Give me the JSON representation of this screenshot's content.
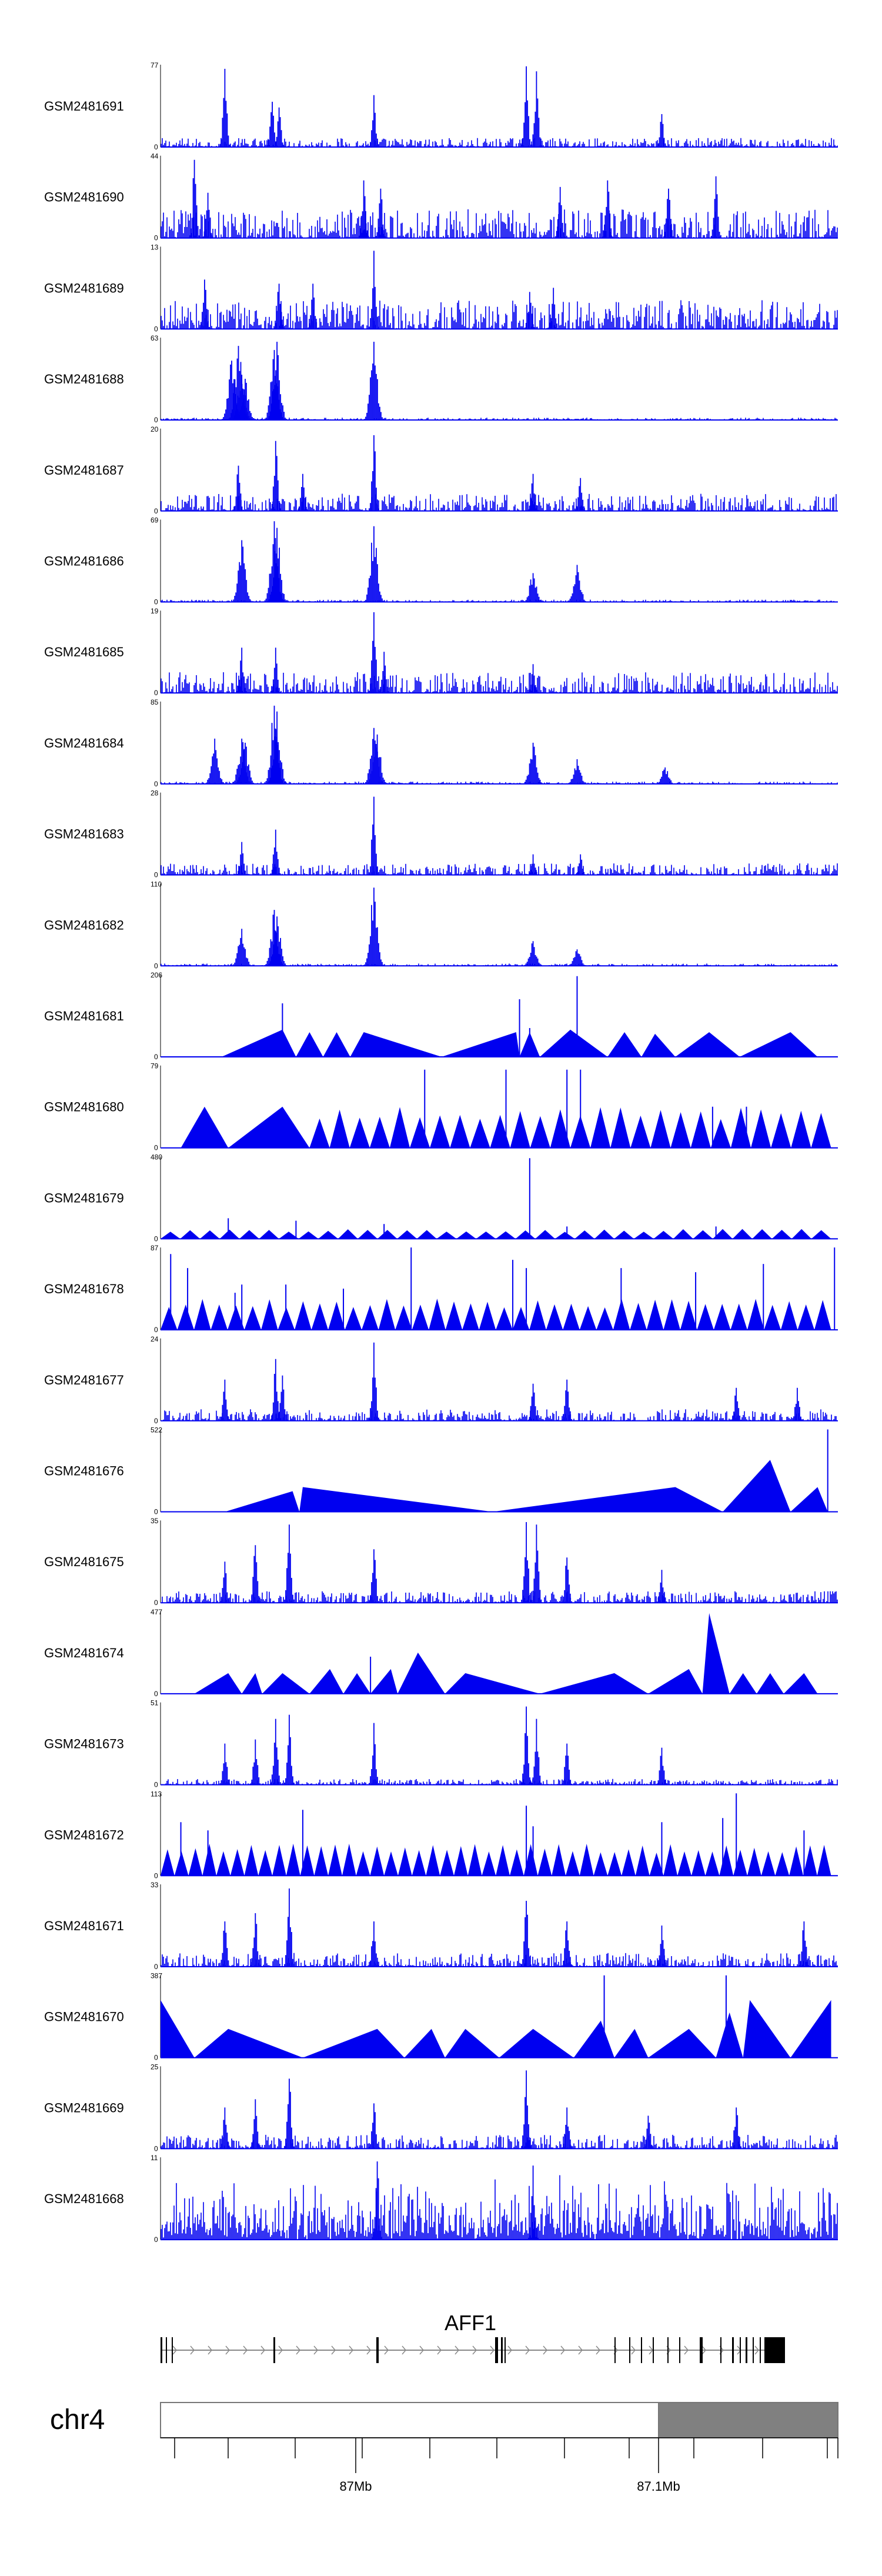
{
  "colors": {
    "signal": "#0000f0",
    "axis": "#000000",
    "exon": "#000000",
    "intron": "#888888",
    "ideogram_light": "#ffffff",
    "ideogram_dark": "#808080",
    "ideogram_border": "#777777"
  },
  "chart_data": {
    "type": "area",
    "title": "",
    "xlabel": "",
    "ylabel": "",
    "chromosome": "chr4",
    "gene": "AFF1",
    "x_ticks": [
      "87Mb",
      "87.1Mb"
    ],
    "tracks": [
      {
        "name": "GSM2481691",
        "ymin": "0",
        "ymax": "77",
        "peaks": [
          0.095,
          0.165,
          0.175,
          0.315,
          0.54,
          0.555,
          0.74
        ],
        "peak_heights": [
          0.95,
          0.55,
          0.48,
          0.63,
          0.98,
          0.92,
          0.4
        ],
        "style": "dense",
        "baseline": 0.08
      },
      {
        "name": "GSM2481690",
        "ymin": "0",
        "ymax": "44",
        "peaks": [
          0.05,
          0.07,
          0.3,
          0.325,
          0.59,
          0.66,
          0.75,
          0.82
        ],
        "peak_heights": [
          0.95,
          0.55,
          0.7,
          0.6,
          0.62,
          0.7,
          0.6,
          0.75
        ],
        "style": "dense",
        "baseline": 0.25
      },
      {
        "name": "GSM2481689",
        "ymin": "0",
        "ymax": "13",
        "peaks": [
          0.065,
          0.175,
          0.225,
          0.315,
          0.545,
          0.58
        ],
        "peak_heights": [
          0.6,
          0.55,
          0.55,
          0.95,
          0.45,
          0.5
        ],
        "style": "dense",
        "baseline": 0.25
      },
      {
        "name": "GSM2481688",
        "ymin": "0",
        "ymax": "63",
        "peaks": [
          0.105,
          0.115,
          0.12,
          0.125,
          0.168,
          0.172,
          0.315
        ],
        "peak_heights": [
          0.72,
          0.9,
          0.55,
          0.5,
          0.85,
          0.95,
          0.95
        ],
        "style": "peaky",
        "baseline": 0.02
      },
      {
        "name": "GSM2481687",
        "ymin": "0",
        "ymax": "20",
        "peaks": [
          0.115,
          0.17,
          0.21,
          0.315,
          0.55,
          0.62
        ],
        "peak_heights": [
          0.55,
          0.85,
          0.45,
          0.92,
          0.45,
          0.4
        ],
        "style": "dense",
        "baseline": 0.15
      },
      {
        "name": "GSM2481686",
        "ymin": "0",
        "ymax": "69",
        "peaks": [
          0.12,
          0.168,
          0.172,
          0.315,
          0.55,
          0.615
        ],
        "peak_heights": [
          0.75,
          0.98,
          0.9,
          0.92,
          0.35,
          0.45
        ],
        "style": "peaky",
        "baseline": 0.02
      },
      {
        "name": "GSM2481685",
        "ymin": "0",
        "ymax": "19",
        "peaks": [
          0.12,
          0.17,
          0.315,
          0.33,
          0.55
        ],
        "peak_heights": [
          0.55,
          0.55,
          0.98,
          0.5,
          0.35
        ],
        "style": "dense",
        "baseline": 0.18
      },
      {
        "name": "GSM2481684",
        "ymin": "0",
        "ymax": "85",
        "peaks": [
          0.08,
          0.12,
          0.125,
          0.168,
          0.172,
          0.315,
          0.32,
          0.55,
          0.615,
          0.745
        ],
        "peak_heights": [
          0.55,
          0.55,
          0.5,
          0.95,
          0.88,
          0.68,
          0.6,
          0.5,
          0.3,
          0.2
        ],
        "style": "peaky",
        "baseline": 0.02
      },
      {
        "name": "GSM2481683",
        "ymin": "0",
        "ymax": "28",
        "peaks": [
          0.12,
          0.17,
          0.315,
          0.55,
          0.62
        ],
        "peak_heights": [
          0.4,
          0.55,
          0.95,
          0.25,
          0.25
        ],
        "style": "dense",
        "baseline": 0.1
      },
      {
        "name": "GSM2481682",
        "ymin": "0",
        "ymax": "110",
        "peaks": [
          0.12,
          0.168,
          0.172,
          0.315,
          0.55,
          0.615
        ],
        "peak_heights": [
          0.45,
          0.68,
          0.6,
          0.95,
          0.3,
          0.2
        ],
        "style": "peaky",
        "baseline": 0.02
      },
      {
        "name": "GSM2481681",
        "ymin": "0",
        "ymax": "206",
        "points": [
          [
            0.09,
            0
          ],
          [
            0.18,
            0.33
          ],
          [
            0.2,
            0
          ],
          [
            0.22,
            0.3
          ],
          [
            0.24,
            0
          ],
          [
            0.26,
            0.3
          ],
          [
            0.28,
            0
          ],
          [
            0.3,
            0.3
          ],
          [
            0.415,
            0
          ],
          [
            0.525,
            0.3
          ],
          [
            0.53,
            0
          ],
          [
            0.545,
            0.3
          ],
          [
            0.56,
            0
          ],
          [
            0.605,
            0.33
          ],
          [
            0.66,
            0
          ],
          [
            0.685,
            0.3
          ],
          [
            0.71,
            0
          ],
          [
            0.73,
            0.28
          ],
          [
            0.76,
            0
          ],
          [
            0.81,
            0.3
          ],
          [
            0.855,
            0
          ],
          [
            0.93,
            0.3
          ],
          [
            0.97,
            0
          ]
        ],
        "spikes": [
          [
            0.18,
            0.65
          ],
          [
            0.53,
            0.7
          ],
          [
            0.545,
            0.35
          ],
          [
            0.615,
            0.98
          ]
        ],
        "style": "triangles"
      },
      {
        "name": "GSM2481680",
        "ymin": "0",
        "ymax": "79",
        "points": [
          [
            0.03,
            0
          ],
          [
            0.065,
            0.5
          ],
          [
            0.1,
            0
          ],
          [
            0.18,
            0.5
          ],
          [
            0.22,
            0
          ]
        ],
        "sawtooth": {
          "start": 0.22,
          "end": 0.99,
          "count": 26,
          "height": 0.5
        },
        "spikes": [
          [
            0.39,
            0.95
          ],
          [
            0.51,
            0.95
          ],
          [
            0.6,
            0.95
          ],
          [
            0.62,
            0.95
          ],
          [
            0.815,
            0.5
          ],
          [
            0.865,
            0.5
          ]
        ],
        "style": "triangles"
      },
      {
        "name": "GSM2481679",
        "ymin": "0",
        "ymax": "480",
        "sawtooth": {
          "start": 0.0,
          "end": 0.99,
          "count": 34,
          "height": 0.12
        },
        "spikes": [
          [
            0.1,
            0.25
          ],
          [
            0.2,
            0.22
          ],
          [
            0.33,
            0.18
          ],
          [
            0.545,
            0.98
          ],
          [
            0.6,
            0.15
          ],
          [
            0.82,
            0.15
          ]
        ],
        "style": "triangles"
      },
      {
        "name": "GSM2481678",
        "ymin": "0",
        "ymax": "87",
        "sawtooth": {
          "start": 0.0,
          "end": 0.99,
          "count": 40,
          "height": 0.38
        },
        "spikes": [
          [
            0.015,
            0.92
          ],
          [
            0.04,
            0.75
          ],
          [
            0.11,
            0.45
          ],
          [
            0.12,
            0.55
          ],
          [
            0.185,
            0.55
          ],
          [
            0.27,
            0.5
          ],
          [
            0.37,
            1.0
          ],
          [
            0.52,
            0.85
          ],
          [
            0.54,
            0.75
          ],
          [
            0.68,
            0.75
          ],
          [
            0.79,
            0.7
          ],
          [
            0.89,
            0.8
          ],
          [
            0.995,
            1.0
          ]
        ],
        "style": "triangles"
      },
      {
        "name": "GSM2481677",
        "ymin": "0",
        "ymax": "24",
        "peaks": [
          0.095,
          0.17,
          0.18,
          0.315,
          0.55,
          0.6,
          0.85,
          0.94
        ],
        "peak_heights": [
          0.5,
          0.75,
          0.55,
          0.95,
          0.45,
          0.5,
          0.4,
          0.4
        ],
        "style": "dense",
        "baseline": 0.1
      },
      {
        "name": "GSM2481676",
        "ymin": "0",
        "ymax": "522",
        "points": [
          [
            0.095,
            0
          ],
          [
            0.195,
            0.25
          ],
          [
            0.205,
            0
          ],
          [
            0.21,
            0.3
          ],
          [
            0.49,
            0
          ],
          [
            0.76,
            0.3
          ],
          [
            0.83,
            0
          ],
          [
            0.9,
            0.63
          ],
          [
            0.93,
            0
          ],
          [
            0.97,
            0.3
          ],
          [
            0.985,
            0
          ]
        ],
        "spikes": [
          [
            0.985,
            1.0
          ]
        ],
        "style": "triangles"
      },
      {
        "name": "GSM2481675",
        "ymin": "0",
        "ymax": "35",
        "peaks": [
          0.095,
          0.14,
          0.19,
          0.315,
          0.54,
          0.555,
          0.6,
          0.74
        ],
        "peak_heights": [
          0.5,
          0.7,
          0.95,
          0.65,
          0.98,
          0.95,
          0.55,
          0.4
        ],
        "style": "dense",
        "baseline": 0.1
      },
      {
        "name": "GSM2481674",
        "ymin": "0",
        "ymax": "477",
        "points": [
          [
            0.05,
            0
          ],
          [
            0.1,
            0.25
          ],
          [
            0.12,
            0
          ],
          [
            0.14,
            0.25
          ],
          [
            0.15,
            0
          ],
          [
            0.18,
            0.25
          ],
          [
            0.22,
            0
          ],
          [
            0.25,
            0.3
          ],
          [
            0.27,
            0
          ],
          [
            0.29,
            0.25
          ],
          [
            0.31,
            0
          ],
          [
            0.34,
            0.3
          ],
          [
            0.35,
            0
          ],
          [
            0.38,
            0.5
          ],
          [
            0.42,
            0
          ],
          [
            0.45,
            0.25
          ],
          [
            0.56,
            0
          ],
          [
            0.67,
            0.25
          ],
          [
            0.72,
            0
          ],
          [
            0.78,
            0.3
          ],
          [
            0.8,
            0
          ],
          [
            0.81,
            0.98
          ],
          [
            0.84,
            0
          ],
          [
            0.86,
            0.25
          ],
          [
            0.88,
            0
          ],
          [
            0.9,
            0.25
          ],
          [
            0.92,
            0
          ],
          [
            0.95,
            0.25
          ],
          [
            0.97,
            0
          ]
        ],
        "spikes": [
          [
            0.31,
            0.45
          ]
        ],
        "style": "triangles"
      },
      {
        "name": "GSM2481673",
        "ymin": "0",
        "ymax": "51",
        "peaks": [
          0.095,
          0.14,
          0.17,
          0.19,
          0.315,
          0.54,
          0.555,
          0.6,
          0.74
        ],
        "peak_heights": [
          0.5,
          0.55,
          0.8,
          0.85,
          0.75,
          0.95,
          0.8,
          0.5,
          0.45
        ],
        "style": "dense",
        "baseline": 0.05
      },
      {
        "name": "GSM2481672",
        "ymin": "0",
        "ymax": "113",
        "sawtooth": {
          "start": 0.0,
          "end": 0.99,
          "count": 48,
          "height": 0.4
        },
        "spikes": [
          [
            0.03,
            0.65
          ],
          [
            0.07,
            0.55
          ],
          [
            0.21,
            0.8
          ],
          [
            0.54,
            0.85
          ],
          [
            0.55,
            0.6
          ],
          [
            0.74,
            0.65
          ],
          [
            0.83,
            0.7
          ],
          [
            0.85,
            1.0
          ],
          [
            0.95,
            0.55
          ]
        ],
        "style": "triangles"
      },
      {
        "name": "GSM2481671",
        "ymin": "0",
        "ymax": "33",
        "peaks": [
          0.095,
          0.14,
          0.19,
          0.315,
          0.54,
          0.6,
          0.74,
          0.95
        ],
        "peak_heights": [
          0.55,
          0.65,
          0.95,
          0.55,
          0.8,
          0.55,
          0.5,
          0.55
        ],
        "style": "dense",
        "baseline": 0.12
      },
      {
        "name": "GSM2481670",
        "ymin": "0",
        "ymax": "387",
        "points": [
          [
            0.0,
            0.7
          ],
          [
            0.05,
            0
          ],
          [
            0.1,
            0.35
          ],
          [
            0.21,
            0
          ],
          [
            0.32,
            0.35
          ],
          [
            0.36,
            0
          ],
          [
            0.4,
            0.35
          ],
          [
            0.42,
            0
          ],
          [
            0.45,
            0.35
          ],
          [
            0.5,
            0
          ],
          [
            0.55,
            0.35
          ],
          [
            0.61,
            0
          ],
          [
            0.65,
            0.45
          ],
          [
            0.67,
            0
          ],
          [
            0.7,
            0.35
          ],
          [
            0.72,
            0
          ],
          [
            0.78,
            0.35
          ],
          [
            0.82,
            0
          ],
          [
            0.84,
            0.55
          ],
          [
            0.86,
            0
          ],
          [
            0.87,
            0.7
          ],
          [
            0.93,
            0
          ],
          [
            0.99,
            0.7
          ],
          [
            0.99,
            0
          ]
        ],
        "spikes": [
          [
            0.655,
            1.0
          ],
          [
            0.835,
            1.0
          ]
        ],
        "style": "triangles"
      },
      {
        "name": "GSM2481669",
        "ymin": "0",
        "ymax": "25",
        "peaks": [
          0.095,
          0.14,
          0.19,
          0.315,
          0.54,
          0.6,
          0.72,
          0.85
        ],
        "peak_heights": [
          0.5,
          0.6,
          0.85,
          0.55,
          0.95,
          0.5,
          0.4,
          0.5
        ],
        "style": "dense",
        "baseline": 0.12
      },
      {
        "name": "GSM2481668",
        "ymin": "0",
        "ymax": "11",
        "peaks": [
          0.32,
          0.55
        ],
        "peak_heights": [
          0.95,
          0.9
        ],
        "style": "noise",
        "baseline": 0.45
      }
    ]
  }
}
